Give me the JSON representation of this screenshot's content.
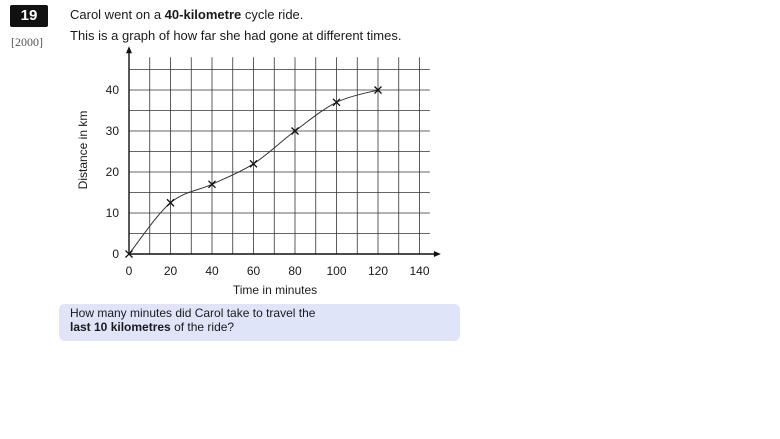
{
  "question": {
    "number": "19",
    "year": "[2000]",
    "intro_a": "Carol went on a ",
    "intro_bold": "40-kilometre",
    "intro_b": " cycle ride.",
    "graph_intro": "This is a graph of how far she had gone at different times.",
    "prompt_a": "How many minutes did Carol take to travel the",
    "prompt_bold": "last 10 kilometres",
    "prompt_b": " of the ride?"
  },
  "colors": {
    "badge": "#111111",
    "question_box": "#dfe4f9",
    "grid": "#333333",
    "curve": "#333333"
  },
  "chart_data": {
    "type": "line",
    "title": "",
    "xlabel": "Time in minutes",
    "ylabel": "Distance in km",
    "xlim": [
      0,
      145
    ],
    "ylim": [
      0,
      48
    ],
    "xticks": [
      0,
      20,
      40,
      60,
      80,
      100,
      120,
      140
    ],
    "yticks": [
      0,
      10,
      20,
      30,
      40
    ],
    "x_grid_step": 10,
    "y_grid_step": 5,
    "grid": true,
    "marker": "cross",
    "series": [
      {
        "x": [
          0,
          20,
          40,
          60,
          80,
          100,
          120
        ],
        "y": [
          0,
          12.5,
          17,
          22,
          30,
          37,
          40
        ]
      }
    ]
  }
}
